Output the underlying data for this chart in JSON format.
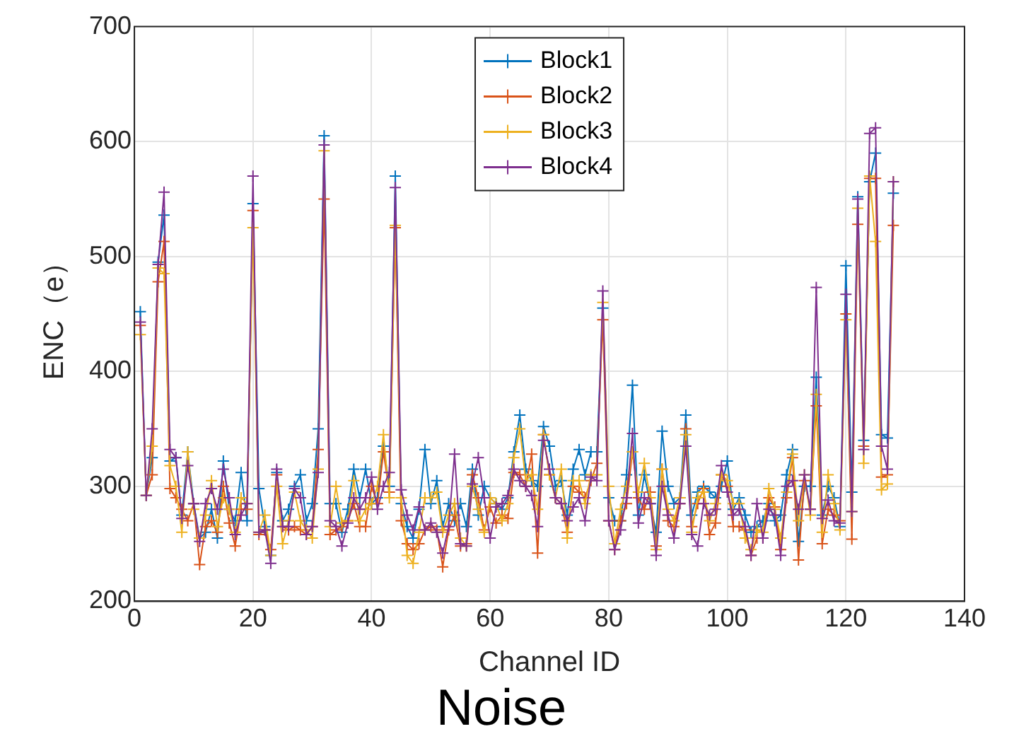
{
  "chart_data": {
    "type": "line",
    "title": "Noise",
    "xlabel": "Channel ID",
    "ylabel": "ENC（e）",
    "x": [
      1,
      2,
      3,
      4,
      5,
      6,
      7,
      8,
      9,
      10,
      11,
      12,
      13,
      14,
      15,
      16,
      17,
      18,
      19,
      20,
      21,
      22,
      23,
      24,
      25,
      26,
      27,
      28,
      29,
      30,
      31,
      32,
      33,
      34,
      35,
      36,
      37,
      38,
      39,
      40,
      41,
      42,
      43,
      44,
      45,
      46,
      47,
      48,
      49,
      50,
      51,
      52,
      53,
      54,
      55,
      56,
      57,
      58,
      59,
      60,
      61,
      62,
      63,
      64,
      65,
      66,
      67,
      68,
      69,
      70,
      71,
      72,
      73,
      74,
      75,
      76,
      77,
      78,
      79,
      80,
      81,
      82,
      83,
      84,
      85,
      86,
      87,
      88,
      89,
      90,
      91,
      92,
      93,
      94,
      95,
      96,
      97,
      98,
      99,
      100,
      101,
      102,
      103,
      104,
      105,
      106,
      107,
      108,
      109,
      110,
      111,
      112,
      113,
      114,
      115,
      116,
      117,
      118,
      119,
      120,
      121,
      122,
      123,
      124,
      125,
      126,
      127,
      128
    ],
    "series": [
      {
        "name": "Block1",
        "color": "#0072bd",
        "values": [
          452,
          292,
          325,
          495,
          536,
          322,
          325,
          275,
          330,
          285,
          255,
          260,
          280,
          255,
          322,
          280,
          270,
          312,
          270,
          546,
          298,
          265,
          240,
          312,
          270,
          280,
          300,
          310,
          270,
          285,
          350,
          605,
          285,
          285,
          260,
          280,
          315,
          290,
          315,
          285,
          290,
          335,
          300,
          570,
          285,
          265,
          255,
          280,
          332,
          285,
          305,
          265,
          285,
          270,
          285,
          265,
          315,
          275,
          300,
          290,
          285,
          280,
          290,
          330,
          362,
          315,
          305,
          300,
          352,
          335,
          300,
          305,
          275,
          315,
          332,
          310,
          330,
          330,
          455,
          290,
          270,
          270,
          310,
          388,
          275,
          310,
          285,
          260,
          348,
          300,
          285,
          290,
          362,
          275,
          295,
          300,
          295,
          290,
          300,
          322,
          280,
          290,
          275,
          260,
          265,
          270,
          285,
          270,
          275,
          310,
          332,
          252,
          300,
          300,
          395,
          275,
          300,
          290,
          265,
          492,
          295,
          552,
          340,
          565,
          590,
          345,
          342,
          555
        ]
      },
      {
        "name": "Block2",
        "color": "#d95319",
        "values": [
          440,
          292,
          310,
          478,
          513,
          298,
          290,
          280,
          270,
          285,
          232,
          265,
          270,
          260,
          300,
          268,
          248,
          280,
          280,
          540,
          258,
          262,
          245,
          310,
          265,
          262,
          265,
          262,
          258,
          265,
          332,
          550,
          258,
          262,
          265,
          270,
          285,
          265,
          265,
          300,
          285,
          330,
          295,
          525,
          270,
          250,
          245,
          250,
          262,
          265,
          262,
          230,
          262,
          275,
          248,
          250,
          310,
          290,
          262,
          282,
          268,
          275,
          272,
          312,
          310,
          300,
          328,
          242,
          345,
          310,
          290,
          285,
          260,
          300,
          295,
          290,
          305,
          320,
          445,
          270,
          245,
          270,
          285,
          330,
          290,
          280,
          295,
          248,
          315,
          270,
          265,
          285,
          350,
          265,
          285,
          298,
          258,
          268,
          310,
          300,
          265,
          265,
          262,
          240,
          255,
          255,
          290,
          282,
          245,
          290,
          325,
          236,
          305,
          280,
          370,
          250,
          280,
          275,
          270,
          450,
          254,
          528,
          335,
          568,
          568,
          308,
          310,
          527
        ]
      },
      {
        "name": "Block3",
        "color": "#edb120",
        "values": [
          432,
          292,
          335,
          490,
          485,
          318,
          300,
          260,
          330,
          280,
          255,
          275,
          305,
          265,
          290,
          280,
          260,
          290,
          285,
          525,
          260,
          275,
          240,
          300,
          250,
          270,
          295,
          270,
          262,
          255,
          315,
          592,
          265,
          300,
          268,
          270,
          305,
          270,
          280,
          285,
          300,
          345,
          290,
          527,
          290,
          240,
          233,
          260,
          290,
          290,
          295,
          260,
          275,
          285,
          255,
          248,
          300,
          280,
          260,
          290,
          285,
          270,
          285,
          325,
          350,
          305,
          310,
          280,
          345,
          310,
          290,
          315,
          255,
          305,
          305,
          285,
          310,
          310,
          460,
          300,
          250,
          280,
          300,
          330,
          295,
          320,
          290,
          245,
          315,
          280,
          270,
          290,
          345,
          260,
          290,
          295,
          270,
          285,
          310,
          305,
          285,
          285,
          255,
          245,
          262,
          260,
          298,
          280,
          255,
          295,
          328,
          270,
          310,
          275,
          380,
          260,
          310,
          285,
          262,
          445,
          278,
          542,
          320,
          570,
          513,
          297,
          302,
          565
        ]
      },
      {
        "name": "Block4",
        "color": "#7e2f8e",
        "values": [
          443,
          292,
          350,
          493,
          556,
          332,
          325,
          272,
          318,
          285,
          252,
          285,
          298,
          280,
          315,
          290,
          258,
          275,
          285,
          570,
          260,
          262,
          233,
          315,
          265,
          265,
          298,
          290,
          258,
          265,
          312,
          597,
          270,
          265,
          248,
          268,
          290,
          280,
          290,
          308,
          280,
          300,
          312,
          560,
          297,
          275,
          262,
          282,
          262,
          268,
          260,
          242,
          265,
          328,
          250,
          248,
          302,
          325,
          290,
          255,
          282,
          285,
          292,
          315,
          305,
          300,
          292,
          265,
          340,
          315,
          290,
          285,
          270,
          282,
          290,
          270,
          308,
          305,
          470,
          270,
          245,
          262,
          290,
          346,
          268,
          290,
          285,
          240,
          300,
          275,
          255,
          285,
          335,
          258,
          248,
          285,
          275,
          280,
          318,
          295,
          275,
          280,
          265,
          240,
          285,
          255,
          280,
          275,
          240,
          300,
          305,
          280,
          310,
          280,
          473,
          272,
          288,
          270,
          268,
          467,
          278,
          550,
          332,
          607,
          612,
          335,
          315,
          565
        ]
      }
    ],
    "xlim": [
      0,
      140
    ],
    "xticks": [
      0,
      20,
      40,
      60,
      80,
      100,
      120,
      140
    ],
    "ylim": [
      200,
      700
    ],
    "yticks": [
      200,
      300,
      400,
      500,
      600,
      700
    ],
    "grid": true,
    "legend": "top",
    "marker": "cross",
    "line_style": "solid"
  }
}
